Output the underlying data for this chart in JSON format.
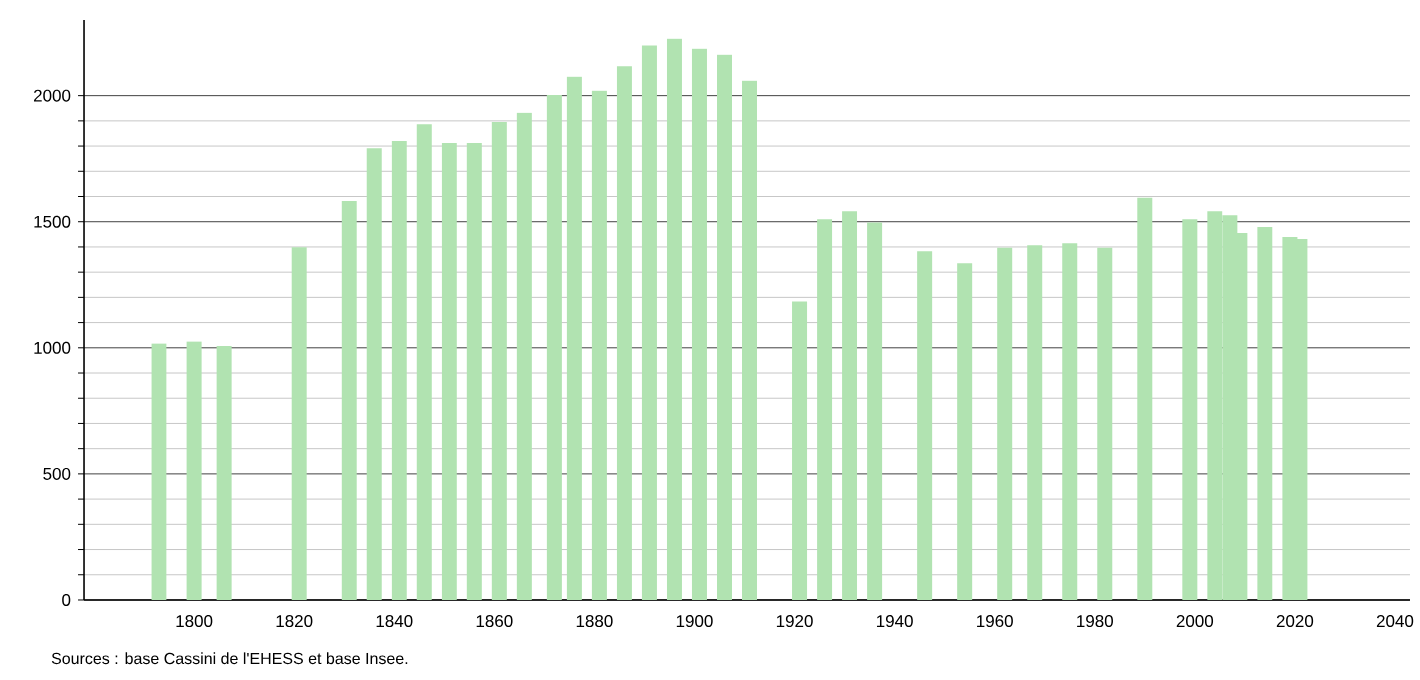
{
  "chart_data": {
    "type": "bar",
    "x": [
      1793,
      1800,
      1806,
      1821,
      1831,
      1836,
      1841,
      1846,
      1851,
      1856,
      1861,
      1866,
      1872,
      1876,
      1881,
      1886,
      1891,
      1896,
      1901,
      1906,
      1911,
      1921,
      1926,
      1931,
      1936,
      1946,
      1954,
      1962,
      1968,
      1975,
      1982,
      1990,
      1999,
      2004,
      2007,
      2009,
      2014,
      2019,
      2021
    ],
    "values": [
      1017,
      1025,
      1007,
      1399,
      1582,
      1791,
      1820,
      1887,
      1812,
      1812,
      1895,
      1932,
      2003,
      2075,
      2019,
      2117,
      2199,
      2226,
      2186,
      2162,
      2059,
      1184,
      1510,
      1542,
      1497,
      1383,
      1335,
      1397,
      1407,
      1415,
      1397,
      1595,
      1510,
      1542,
      1526,
      1455,
      1479,
      1439,
      1431
    ],
    "color": "#b1e3b1",
    "xlim": [
      1778,
      2043
    ],
    "ylim": [
      0,
      2300
    ],
    "xticks": [
      1800,
      1820,
      1840,
      1860,
      1880,
      1900,
      1920,
      1940,
      1960,
      1980,
      2000,
      2020,
      2040
    ],
    "yticks": [
      0,
      500,
      1000,
      1500,
      2000
    ],
    "grid": "y",
    "annotations": [
      "Sources : base Cassini de l'EHESS et base Insee."
    ]
  }
}
